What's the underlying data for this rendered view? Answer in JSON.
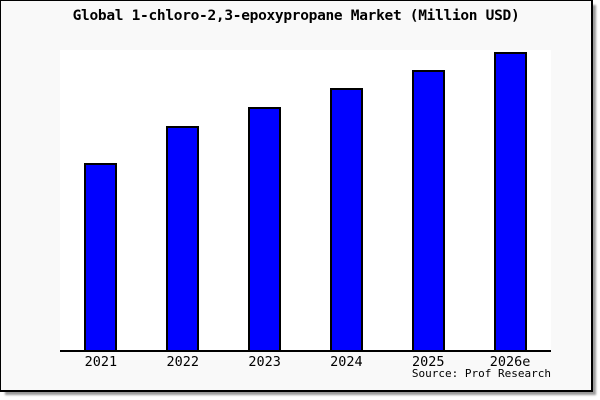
{
  "source_label": "Source: Prof Research",
  "colors": {
    "bar": "#0000ff",
    "bar_border": "#000000",
    "axis": "#000000",
    "canvas_background": "#f9f9f9",
    "plot_background": "#ffffff",
    "frame_border": "#000000",
    "shadow": "#999999",
    "text": "#000000"
  },
  "chart_data": {
    "type": "bar",
    "title": "Global 1-chloro-2,3-epoxypropane Market (Million USD)",
    "categories": [
      "2021",
      "2022",
      "2023",
      "2024",
      "2025",
      "2026e"
    ],
    "values": [
      62.5,
      74.8,
      81.1,
      87.4,
      93.2,
      99.3
    ],
    "value_note": "relative bar heights in % of plot height; chart shows no numeric y-axis",
    "xlabel": "",
    "ylabel": "",
    "ylim": [
      0,
      100
    ],
    "y_axis_labels": "none",
    "grid": false,
    "legend": "none",
    "annotation": "Source: Prof Research"
  }
}
